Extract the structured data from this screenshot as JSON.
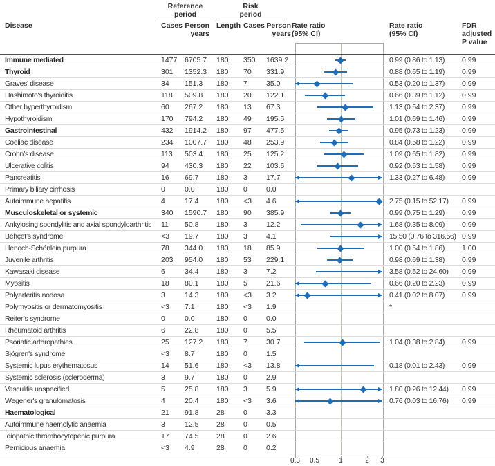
{
  "header": {
    "disease": "Disease",
    "reference_group": "Reference\nperiod",
    "risk_group": "Risk\nperiod",
    "ref_cases": "Cases",
    "ref_person_years": "Person\nyears",
    "length": "Length",
    "risk_cases": "Cases",
    "risk_person_years": "Person\nyears",
    "plot_title": "Rate ratio\n(95% CI)",
    "rr_col": "Rate ratio\n(95% CI)",
    "fdr_col": "FDR\nadjusted\nP value"
  },
  "colors": {
    "marker_blue": "#1f6db4",
    "reference_line_pink": "#f2aaa5",
    "frame_gray": "#a8a8a8"
  },
  "axis": {
    "scale": "log",
    "min": 0.3,
    "max": 3,
    "reference_value": 1,
    "ticks": [
      {
        "label": "0.3",
        "value": 0.3
      },
      {
        "label": "0.5",
        "value": 0.5
      },
      {
        "label": "1",
        "value": 1
      },
      {
        "label": "2",
        "value": 2
      },
      {
        "label": "3",
        "value": 3
      }
    ]
  },
  "chart_data": {
    "type": "forest",
    "x_scale": "log",
    "xlim": [
      0.3,
      3
    ],
    "reference_line": 1,
    "rows": [
      {
        "name": "Immune mediated",
        "bold": true,
        "ref_cases": "1477",
        "ref_py": "6705.7",
        "length": "180",
        "risk_cases": "350",
        "risk_py": "1639.2",
        "rr": 0.99,
        "lo": 0.86,
        "hi": 1.13,
        "rr_text": "0.99 (0.86 to 1.13)",
        "fdr": "0.99"
      },
      {
        "name": "Thyroid",
        "bold": true,
        "ref_cases": "301",
        "ref_py": "1352.3",
        "length": "180",
        "risk_cases": "70",
        "risk_py": "331.9",
        "rr": 0.88,
        "lo": 0.65,
        "hi": 1.19,
        "rr_text": "0.88 (0.65 to 1.19)",
        "fdr": "0.99"
      },
      {
        "name": "Graves’ disease",
        "bold": false,
        "ref_cases": "34",
        "ref_py": "151.3",
        "length": "180",
        "risk_cases": "7",
        "risk_py": "35.0",
        "rr": 0.53,
        "lo": 0.2,
        "hi": 1.37,
        "rr_text": "0.53 (0.20 to 1.37)",
        "fdr": "0.99"
      },
      {
        "name": "Hashimoto's thyroiditis",
        "bold": false,
        "ref_cases": "118",
        "ref_py": "509.8",
        "length": "180",
        "risk_cases": "20",
        "risk_py": "122.1",
        "rr": 0.66,
        "lo": 0.39,
        "hi": 1.12,
        "rr_text": "0.66 (0.39 to 1.12)",
        "fdr": "0.99"
      },
      {
        "name": "Other hyperthyroidism",
        "bold": false,
        "ref_cases": "60",
        "ref_py": "267.2",
        "length": "180",
        "risk_cases": "13",
        "risk_py": "67.3",
        "rr": 1.13,
        "lo": 0.54,
        "hi": 2.37,
        "rr_text": "1.13 (0.54 to 2.37)",
        "fdr": "0.99"
      },
      {
        "name": "Hypothyroidism",
        "bold": false,
        "ref_cases": "170",
        "ref_py": "794.2",
        "length": "180",
        "risk_cases": "49",
        "risk_py": "195.5",
        "rr": 1.01,
        "lo": 0.69,
        "hi": 1.46,
        "rr_text": "1.01 (0.69 to 1.46)",
        "fdr": "0.99"
      },
      {
        "name": "Gastrointestinal",
        "bold": true,
        "ref_cases": "432",
        "ref_py": "1914.2",
        "length": "180",
        "risk_cases": "97",
        "risk_py": "477.5",
        "rr": 0.95,
        "lo": 0.73,
        "hi": 1.23,
        "rr_text": "0.95 (0.73 to 1.23)",
        "fdr": "0.99"
      },
      {
        "name": "Coeliac disease",
        "bold": false,
        "ref_cases": "234",
        "ref_py": "1007.7",
        "length": "180",
        "risk_cases": "48",
        "risk_py": "253.9",
        "rr": 0.84,
        "lo": 0.58,
        "hi": 1.22,
        "rr_text": "0.84 (0.58 to 1.22)",
        "fdr": "0.99"
      },
      {
        "name": "Crohn’s disease",
        "bold": false,
        "ref_cases": "113",
        "ref_py": "503.4",
        "length": "180",
        "risk_cases": "25",
        "risk_py": "125.2",
        "rr": 1.09,
        "lo": 0.65,
        "hi": 1.82,
        "rr_text": "1.09 (0.65 to 1.82)",
        "fdr": "0.99"
      },
      {
        "name": "Ulcerative colitis",
        "bold": false,
        "ref_cases": "94",
        "ref_py": "430.3",
        "length": "180",
        "risk_cases": "22",
        "risk_py": "103.6",
        "rr": 0.92,
        "lo": 0.53,
        "hi": 1.58,
        "rr_text": "0.92 (0.53 to 1.58)",
        "fdr": "0.99"
      },
      {
        "name": "Pancreatitis",
        "bold": false,
        "ref_cases": "16",
        "ref_py": "69.7",
        "length": "180",
        "risk_cases": "3",
        "risk_py": "17.7",
        "rr": 1.33,
        "lo": 0.27,
        "hi": 6.48,
        "rr_text": "1.33 (0.27 to 6.48)",
        "fdr": "0.99"
      },
      {
        "name": "Primary biliary cirrhosis",
        "bold": false,
        "ref_cases": "0",
        "ref_py": "0.0",
        "length": "180",
        "risk_cases": "0",
        "risk_py": "0.0",
        "rr": null,
        "lo": null,
        "hi": null,
        "rr_text": "",
        "fdr": ""
      },
      {
        "name": "Autoimmune hepatitis",
        "bold": false,
        "ref_cases": "4",
        "ref_py": "17.4",
        "length": "180",
        "risk_cases": "<3",
        "risk_py": "4.6",
        "rr": 2.75,
        "lo": 0.15,
        "hi": 52.17,
        "rr_text": "2.75 (0.15 to 52.17)",
        "fdr": "0.99"
      },
      {
        "name": "Musculoskeletal or systemic",
        "bold": true,
        "ref_cases": "340",
        "ref_py": "1590.7",
        "length": "180",
        "risk_cases": "90",
        "risk_py": "385.9",
        "rr": 0.99,
        "lo": 0.75,
        "hi": 1.29,
        "rr_text": "0.99 (0.75 to 1.29)",
        "fdr": "0.99"
      },
      {
        "name": "Ankylosing spondylitis and axial spondyloarthritis",
        "bold": false,
        "ref_cases": "11",
        "ref_py": "50.8",
        "length": "180",
        "risk_cases": "3",
        "risk_py": "12.2",
        "rr": 1.68,
        "lo": 0.35,
        "hi": 8.09,
        "rr_text": "1.68 (0.35 to 8.09)",
        "fdr": "0.99"
      },
      {
        "name": "Behçet’s syndrome",
        "bold": false,
        "ref_cases": "<3",
        "ref_py": "19.7",
        "length": "180",
        "risk_cases": "3",
        "risk_py": "4.1",
        "rr": 15.5,
        "lo": 0.76,
        "hi": 316.56,
        "rr_text": "15.50 (0.76 to 316.56)",
        "fdr": "0.99"
      },
      {
        "name": "Henoch-Schönlein purpura",
        "bold": false,
        "ref_cases": "78",
        "ref_py": "344.0",
        "length": "180",
        "risk_cases": "18",
        "risk_py": "85.9",
        "rr": 1.0,
        "lo": 0.54,
        "hi": 1.86,
        "rr_text": "1.00 (0.54 to 1.86)",
        "fdr": "1.00"
      },
      {
        "name": "Juvenile arthritis",
        "bold": false,
        "ref_cases": "203",
        "ref_py": "954.0",
        "length": "180",
        "risk_cases": "53",
        "risk_py": "229.1",
        "rr": 0.98,
        "lo": 0.69,
        "hi": 1.38,
        "rr_text": "0.98 (0.69 to 1.38)",
        "fdr": "0.99"
      },
      {
        "name": "Kawasaki disease",
        "bold": false,
        "ref_cases": "6",
        "ref_py": "34.4",
        "length": "180",
        "risk_cases": "3",
        "risk_py": "7.2",
        "rr": 3.58,
        "lo": 0.52,
        "hi": 24.6,
        "rr_text": "3.58 (0.52 to 24.60)",
        "fdr": "0.99"
      },
      {
        "name": "Myositis",
        "bold": false,
        "ref_cases": "18",
        "ref_py": "80.1",
        "length": "180",
        "risk_cases": "5",
        "risk_py": "21.6",
        "rr": 0.66,
        "lo": 0.2,
        "hi": 2.23,
        "rr_text": "0.66 (0.20 to 2.23)",
        "fdr": "0.99"
      },
      {
        "name": "Polyarteritis nodosa",
        "bold": false,
        "ref_cases": "3",
        "ref_py": "14.3",
        "length": "180",
        "risk_cases": "<3",
        "risk_py": "3.2",
        "rr": 0.41,
        "lo": 0.02,
        "hi": 8.07,
        "rr_text": "0.41 (0.02 to 8.07)",
        "fdr": "0.99"
      },
      {
        "name": "Polymyositis or dermatomyositis",
        "bold": false,
        "ref_cases": "<3",
        "ref_py": "7.1",
        "length": "180",
        "risk_cases": "<3",
        "risk_py": "1.9",
        "rr": null,
        "lo": null,
        "hi": null,
        "rr_text": "*",
        "fdr": ""
      },
      {
        "name": "Reiter’s syndrome",
        "bold": false,
        "ref_cases": "0",
        "ref_py": "0.0",
        "length": "180",
        "risk_cases": "0",
        "risk_py": "0.0",
        "rr": null,
        "lo": null,
        "hi": null,
        "rr_text": "",
        "fdr": ""
      },
      {
        "name": "Rheumatoid arthritis",
        "bold": false,
        "ref_cases": "6",
        "ref_py": "22.8",
        "length": "180",
        "risk_cases": "0",
        "risk_py": "5.5",
        "rr": null,
        "lo": null,
        "hi": null,
        "rr_text": "",
        "fdr": ""
      },
      {
        "name": "Psoriatic arthropathies",
        "bold": false,
        "ref_cases": "25",
        "ref_py": "127.2",
        "length": "180",
        "risk_cases": "7",
        "risk_py": "30.7",
        "rr": 1.04,
        "lo": 0.38,
        "hi": 2.84,
        "rr_text": "1.04 (0.38 to 2.84)",
        "fdr": "0.99"
      },
      {
        "name": "Sjögren's syndrome",
        "bold": false,
        "ref_cases": "<3",
        "ref_py": "8.7",
        "length": "180",
        "risk_cases": "0",
        "risk_py": "1.5",
        "rr": null,
        "lo": null,
        "hi": null,
        "rr_text": "",
        "fdr": ""
      },
      {
        "name": "Systemic lupus erythematosus",
        "bold": false,
        "ref_cases": "14",
        "ref_py": "51.6",
        "length": "180",
        "risk_cases": "<3",
        "risk_py": "13.8",
        "rr": 0.18,
        "lo": 0.01,
        "hi": 2.43,
        "rr_text": "0.18 (0.01 to 2.43)",
        "fdr": "0.99"
      },
      {
        "name": "Systemic sclerosis (scleroderma)",
        "bold": false,
        "ref_cases": "3",
        "ref_py": "9.7",
        "length": "180",
        "risk_cases": "0",
        "risk_py": "2.9",
        "rr": null,
        "lo": null,
        "hi": null,
        "rr_text": "",
        "fdr": ""
      },
      {
        "name": "Vasculitis unspecified",
        "bold": false,
        "ref_cases": "5",
        "ref_py": "25.8",
        "length": "180",
        "risk_cases": "3",
        "risk_py": "5.9",
        "rr": 1.8,
        "lo": 0.26,
        "hi": 12.44,
        "rr_text": "1.80 (0.26 to 12.44)",
        "fdr": "0.99"
      },
      {
        "name": "Wegener's granulomatosis",
        "bold": false,
        "ref_cases": "4",
        "ref_py": "20.4",
        "length": "180",
        "risk_cases": "<3",
        "risk_py": "3.6",
        "rr": 0.76,
        "lo": 0.03,
        "hi": 16.76,
        "rr_text": "0.76 (0.03 to 16.76)",
        "fdr": "0.99"
      },
      {
        "name": "Haematological",
        "bold": true,
        "ref_cases": "21",
        "ref_py": "91.8",
        "length": "28",
        "risk_cases": "0",
        "risk_py": "3.3",
        "rr": null,
        "lo": null,
        "hi": null,
        "rr_text": "",
        "fdr": ""
      },
      {
        "name": "Autoimmune haemolytic anaemia",
        "bold": false,
        "ref_cases": "3",
        "ref_py": "12.5",
        "length": "28",
        "risk_cases": "0",
        "risk_py": "0.5",
        "rr": null,
        "lo": null,
        "hi": null,
        "rr_text": "",
        "fdr": ""
      },
      {
        "name": "Idiopathic thrombocytopenic purpura",
        "bold": false,
        "ref_cases": "17",
        "ref_py": "74.5",
        "length": "28",
        "risk_cases": "0",
        "risk_py": "2.6",
        "rr": null,
        "lo": null,
        "hi": null,
        "rr_text": "",
        "fdr": ""
      },
      {
        "name": "Pernicious anaemia",
        "bold": false,
        "ref_cases": "<3",
        "ref_py": "4.9",
        "length": "28",
        "risk_cases": "0",
        "risk_py": "0.2",
        "rr": null,
        "lo": null,
        "hi": null,
        "rr_text": "",
        "fdr": ""
      }
    ]
  }
}
